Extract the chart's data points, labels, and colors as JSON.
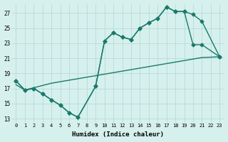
{
  "xlabel": "Humidex (Indice chaleur)",
  "bg_color": "#d6f0ed",
  "grid_color": "#b8dbd7",
  "line_color": "#1a7a6a",
  "xlim": [
    -0.5,
    23.5
  ],
  "ylim": [
    12.5,
    28.2
  ],
  "xticks": [
    0,
    1,
    2,
    3,
    4,
    5,
    6,
    7,
    8,
    9,
    10,
    11,
    12,
    13,
    14,
    15,
    16,
    17,
    18,
    19,
    20,
    21,
    22,
    23
  ],
  "yticks": [
    13,
    15,
    17,
    19,
    21,
    23,
    25,
    27
  ],
  "line1_x": [
    0,
    1,
    2,
    3,
    4,
    5,
    6,
    7,
    9,
    10,
    11,
    12,
    13,
    14,
    15,
    16,
    17,
    18,
    19,
    20,
    21,
    23
  ],
  "line1_y": [
    18.0,
    16.8,
    17.0,
    16.3,
    15.5,
    14.8,
    13.8,
    13.2,
    17.3,
    23.3,
    24.4,
    23.8,
    23.5,
    25.0,
    25.7,
    26.3,
    27.8,
    27.2,
    27.2,
    22.8,
    22.8,
    21.2
  ],
  "line2_x": [
    0,
    1,
    2,
    3,
    4,
    5,
    6,
    7,
    9,
    10,
    11,
    12,
    13,
    14,
    15,
    16,
    17,
    18,
    19,
    20,
    21,
    23
  ],
  "line2_y": [
    18.0,
    16.8,
    17.0,
    16.3,
    15.5,
    14.8,
    13.8,
    13.2,
    17.3,
    23.3,
    24.4,
    23.8,
    23.5,
    25.0,
    25.7,
    26.3,
    27.8,
    27.2,
    27.2,
    26.8,
    25.9,
    21.2
  ],
  "line3_x": [
    0,
    1,
    2,
    3,
    4,
    5,
    6,
    7,
    8,
    9,
    10,
    11,
    12,
    13,
    14,
    15,
    16,
    17,
    18,
    19,
    20,
    21,
    23
  ],
  "line3_y": [
    17.5,
    16.8,
    17.1,
    17.4,
    17.7,
    17.9,
    18.1,
    18.3,
    18.5,
    18.7,
    18.9,
    19.1,
    19.3,
    19.5,
    19.7,
    19.9,
    20.1,
    20.3,
    20.5,
    20.7,
    20.9,
    21.1,
    21.2
  ],
  "markersize": 2.5,
  "linewidth": 1.0
}
